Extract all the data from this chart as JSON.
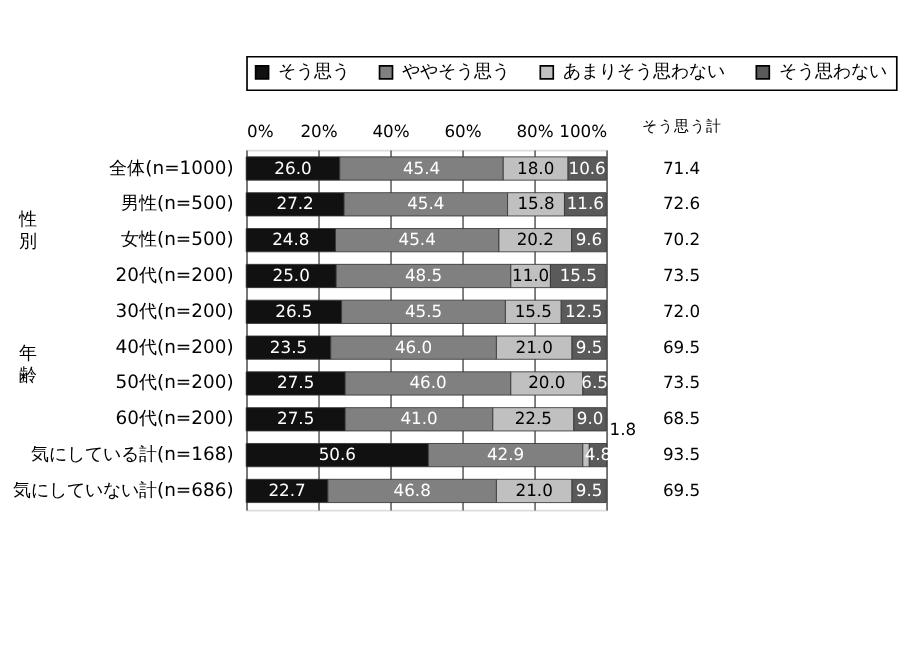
{
  "chart_data": {
    "type": "bar",
    "orientation": "horizontal",
    "stacked": true,
    "legend": "top",
    "grid": "x",
    "categories": [
      "全体(n=1000)",
      "男性(n=500)",
      "女性(n=500)",
      "20代(n=200)",
      "30代(n=200)",
      "40代(n=200)",
      "50代(n=200)",
      "60代(n=200)",
      "気にしている計(n=168)",
      "気にしていない計(n=686)"
    ],
    "series": [
      {
        "name": "そう思う",
        "color": "#111111",
        "values": [
          26.0,
          27.2,
          24.8,
          25.0,
          26.5,
          23.5,
          27.5,
          27.5,
          50.6,
          22.7
        ],
        "value_labels": [
          "26.0",
          "27.2",
          "24.8",
          "25.0",
          "26.5",
          "23.5",
          "27.5",
          "27.5",
          "50.6",
          "22.7"
        ]
      },
      {
        "name": "ややそう思う",
        "color": "#808080",
        "values": [
          45.4,
          45.4,
          45.4,
          48.5,
          45.5,
          46.0,
          46.0,
          41.0,
          42.9,
          46.8
        ],
        "value_labels": [
          "45.4",
          "45.4",
          "45.4",
          "48.5",
          "45.5",
          "46.0",
          "46.0",
          "41.0",
          "42.9",
          "46.8"
        ]
      },
      {
        "name": "あまりそう思わない",
        "color": "#c0c0c0",
        "values": [
          18.0,
          15.8,
          20.2,
          11.0,
          15.5,
          21.0,
          20.0,
          22.5,
          1.8,
          21.0
        ],
        "value_labels": [
          "18.0",
          "15.8",
          "20.2",
          "11.0",
          "15.5",
          "21.0",
          "20.0",
          "22.5",
          "1.8",
          "21.0"
        ]
      },
      {
        "name": "そう思わない",
        "color": "#5a5a5a",
        "values": [
          10.6,
          11.6,
          9.6,
          15.5,
          12.5,
          9.5,
          6.5,
          9.0,
          4.8,
          9.5
        ],
        "value_labels": [
          "10.6",
          "11.6",
          "9.6",
          "15.5",
          "12.5",
          "9.5",
          "6.5",
          "9.0",
          "4.8",
          "9.5"
        ]
      }
    ],
    "xlim": [
      0,
      100
    ],
    "xticks": [
      {
        "value": 0,
        "label": "0%"
      },
      {
        "value": 20,
        "label": "20%"
      },
      {
        "value": 40,
        "label": "40%"
      },
      {
        "value": 60,
        "label": "60%"
      },
      {
        "value": 80,
        "label": "80%"
      },
      {
        "value": 100,
        "label": "100%"
      }
    ],
    "annotations": [
      "そう思う計",
      "性別",
      "年齢",
      "71.4",
      "72.6",
      "70.2",
      "73.5",
      "72.0",
      "69.5",
      "73.5",
      "68.5",
      "93.5",
      "69.5"
    ]
  }
}
